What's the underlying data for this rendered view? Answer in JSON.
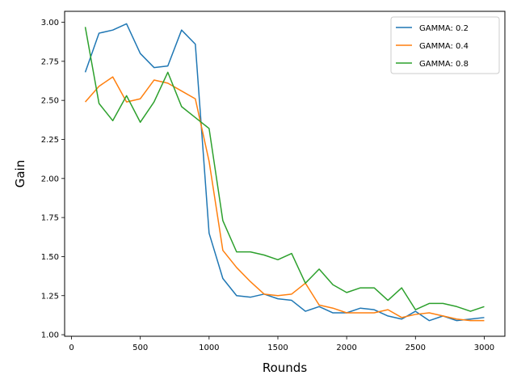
{
  "chart_data": {
    "type": "line",
    "xlabel": "Rounds",
    "ylabel": "Gain",
    "xlim": [
      -50,
      3150
    ],
    "ylim": [
      0.99,
      3.07
    ],
    "xticks": [
      0,
      500,
      1000,
      1500,
      2000,
      2500,
      3000
    ],
    "yticks": [
      1.0,
      1.25,
      1.5,
      1.75,
      2.0,
      2.25,
      2.5,
      2.75,
      3.0
    ],
    "xtick_labels": [
      "0",
      "500",
      "1000",
      "1500",
      "2000",
      "2500",
      "3000"
    ],
    "ytick_labels": [
      "1.00",
      "1.25",
      "1.50",
      "1.75",
      "2.00",
      "2.25",
      "2.50",
      "2.75",
      "3.00"
    ],
    "legend_position": "top-right",
    "grid": false,
    "x": [
      100,
      200,
      300,
      400,
      500,
      600,
      700,
      800,
      900,
      1000,
      1100,
      1200,
      1300,
      1400,
      1500,
      1600,
      1700,
      1800,
      1900,
      2000,
      2100,
      2200,
      2300,
      2400,
      2500,
      2600,
      2700,
      2800,
      2900,
      3000
    ],
    "series": [
      {
        "name": "GAMMA: 0.2",
        "color": "#1f77b4",
        "values": [
          2.68,
          2.93,
          2.95,
          2.99,
          2.8,
          2.71,
          2.72,
          2.95,
          2.86,
          1.65,
          1.36,
          1.25,
          1.24,
          1.26,
          1.23,
          1.22,
          1.15,
          1.18,
          1.14,
          1.14,
          1.17,
          1.16,
          1.12,
          1.1,
          1.15,
          1.09,
          1.12,
          1.09,
          1.1,
          1.11
        ]
      },
      {
        "name": "GAMMA: 0.4",
        "color": "#ff7f0e",
        "values": [
          2.49,
          2.59,
          2.65,
          2.49,
          2.51,
          2.63,
          2.61,
          2.56,
          2.51,
          2.11,
          1.54,
          1.43,
          1.34,
          1.26,
          1.25,
          1.26,
          1.33,
          1.19,
          1.17,
          1.14,
          1.14,
          1.14,
          1.16,
          1.11,
          1.13,
          1.14,
          1.12,
          1.1,
          1.09,
          1.09
        ]
      },
      {
        "name": "GAMMA: 0.8",
        "color": "#2ca02c",
        "values": [
          2.97,
          2.48,
          2.37,
          2.53,
          2.36,
          2.49,
          2.68,
          2.46,
          2.39,
          2.32,
          1.73,
          1.53,
          1.53,
          1.51,
          1.48,
          1.52,
          1.33,
          1.42,
          1.32,
          1.27,
          1.3,
          1.3,
          1.22,
          1.3,
          1.16,
          1.2,
          1.2,
          1.18,
          1.15,
          1.18
        ]
      }
    ]
  }
}
